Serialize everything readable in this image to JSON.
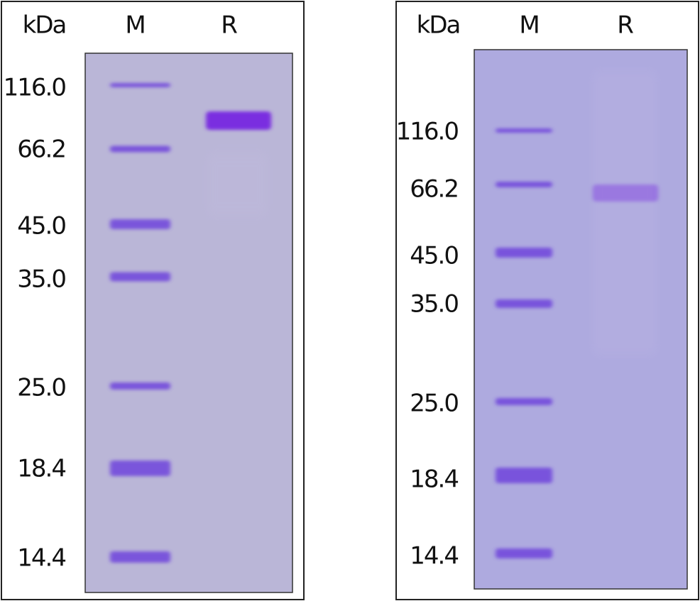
{
  "panels": [
    {
      "header": {
        "unit": "kDa",
        "lanes": [
          "M",
          "R"
        ]
      },
      "markers": [
        "116.0",
        "66.2",
        "45.0",
        "35.0",
        "25.0",
        "18.4",
        "14.4"
      ]
    },
    {
      "header": {
        "unit": "kDa",
        "lanes": [
          "M",
          "R"
        ]
      },
      "markers": [
        "116.0",
        "66.2",
        "45.0",
        "35.0",
        "25.0",
        "18.4",
        "14.4"
      ]
    }
  ]
}
